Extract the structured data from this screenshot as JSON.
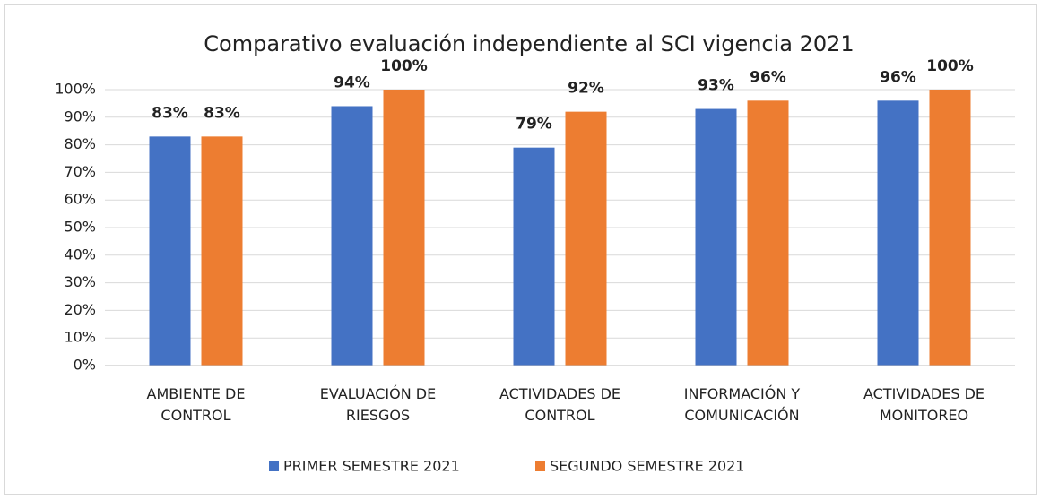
{
  "chart_data": {
    "type": "bar",
    "title": "Comparativo evaluación independiente al SCI vigencia 2021",
    "categories": [
      "AMBIENTE DE CONTROL",
      "EVALUACIÓN DE RIESGOS",
      "ACTIVIDADES DE CONTROL",
      "INFORMACIÓN Y COMUNICACIÓN",
      "ACTIVIDADES DE MONITOREO"
    ],
    "series": [
      {
        "name": "PRIMER SEMESTRE 2021",
        "color": "#4472c4",
        "values": [
          83,
          94,
          79,
          93,
          96
        ],
        "value_labels": [
          "83%",
          "94%",
          "79%",
          "93%",
          "96%"
        ]
      },
      {
        "name": "SEGUNDO SEMESTRE 2021",
        "color": "#ed7d31",
        "values": [
          83,
          100,
          92,
          96,
          100
        ],
        "value_labels": [
          "83%",
          "100%",
          "92%",
          "96%",
          "100%"
        ]
      }
    ],
    "ylim": [
      0,
      100
    ],
    "yticks": [
      {
        "value": 0,
        "label": "0%"
      },
      {
        "value": 10,
        "label": "10%"
      },
      {
        "value": 20,
        "label": "20%"
      },
      {
        "value": 30,
        "label": "30%"
      },
      {
        "value": 40,
        "label": "40%"
      },
      {
        "value": 50,
        "label": "50%"
      },
      {
        "value": 60,
        "label": "60%"
      },
      {
        "value": 70,
        "label": "70%"
      },
      {
        "value": 80,
        "label": "80%"
      },
      {
        "value": 90,
        "label": "90%"
      },
      {
        "value": 100,
        "label": "100%"
      }
    ],
    "grid": true,
    "legend": "bottom"
  }
}
